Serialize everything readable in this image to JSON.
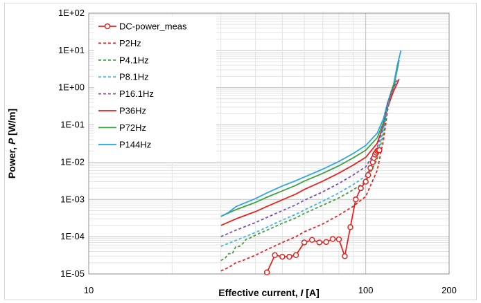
{
  "chart_data": {
    "type": "line",
    "xlabel_parts": [
      "Effective  current, ",
      "I",
      "  [A]"
    ],
    "ylabel_parts": [
      "Power, ",
      "P",
      "  [W/m]"
    ],
    "x_scale": "log",
    "y_scale": "log",
    "xlim": [
      10,
      200
    ],
    "ylim": [
      1e-05,
      100
    ],
    "x_ticks": [
      {
        "v": 10,
        "label": "10"
      },
      {
        "v": 100,
        "label": "100"
      },
      {
        "v": 200,
        "label": "200"
      }
    ],
    "y_ticks": [
      {
        "v": 100,
        "label": "1E+02"
      },
      {
        "v": 10,
        "label": "1E+01"
      },
      {
        "v": 1,
        "label": "1E+00"
      },
      {
        "v": 0.1,
        "label": "1E-01"
      },
      {
        "v": 0.01,
        "label": "1E-02"
      },
      {
        "v": 0.001,
        "label": "1E-03"
      },
      {
        "v": 0.0001,
        "label": "1E-04"
      },
      {
        "v": 1e-05,
        "label": "1E-05"
      }
    ],
    "grid": true,
    "legend_position": "top-left",
    "series": [
      {
        "name": "DC-power_meas",
        "color": "#e8231f",
        "dash": "solid",
        "marker": "circle",
        "x": [
          44,
          47,
          50,
          53,
          56,
          60,
          64,
          68,
          72,
          76,
          80,
          84,
          88,
          92,
          96,
          100,
          102,
          104,
          106,
          107,
          108,
          109,
          110,
          111,
          112
        ],
        "y": [
          1.1e-05,
          3.2e-05,
          2.9e-05,
          2.9e-05,
          3.2e-05,
          7e-05,
          8.2e-05,
          7e-05,
          7.2e-05,
          8.7e-05,
          8.5e-05,
          3e-05,
          0.00018,
          0.001,
          0.002,
          0.003,
          0.0045,
          0.007,
          0.01,
          0.013,
          0.016,
          0.018,
          0.02,
          0.021,
          0.021
        ]
      },
      {
        "name": "P2Hz",
        "color": "#e8231f",
        "dash": "dashed",
        "x": [
          30,
          32,
          34,
          36,
          40,
          44,
          50,
          56,
          60,
          70,
          80,
          90,
          100,
          110,
          116,
          120,
          124,
          128
        ],
        "y": [
          1.2e-05,
          1.5e-05,
          2e-05,
          2.3e-05,
          3.2e-05,
          4.5e-05,
          7e-05,
          0.0001,
          0.000135,
          0.00022,
          0.00038,
          0.00065,
          0.0012,
          0.006,
          0.04,
          0.25,
          0.8,
          1.5
        ]
      },
      {
        "name": "P4.1Hz",
        "color": "#3fa13f",
        "dash": "dashed",
        "x": [
          30,
          31,
          32,
          33,
          34,
          35,
          36,
          37,
          38,
          40,
          44,
          50,
          56,
          60,
          70,
          80,
          90,
          100,
          110,
          116,
          120,
          124,
          128
        ],
        "y": [
          2.3e-05,
          2.6e-05,
          3.5e-05,
          3.5e-05,
          5.5e-05,
          5.5e-05,
          6.5e-05,
          8.5e-05,
          9e-05,
          0.00011,
          0.00015,
          0.00023,
          0.00032,
          0.00042,
          0.0007,
          0.0011,
          0.0018,
          0.003,
          0.012,
          0.06,
          0.3,
          0.9,
          1.5
        ]
      },
      {
        "name": "P8.1Hz",
        "color": "#3fb6e0",
        "dash": "dashed",
        "x": [
          30,
          34,
          40,
          44,
          50,
          56,
          60,
          70,
          80,
          90,
          100,
          110,
          116,
          120,
          126,
          130
        ],
        "y": [
          5.5e-05,
          8e-05,
          0.00013,
          0.00018,
          0.00028,
          0.0004,
          0.00052,
          0.0009,
          0.0015,
          0.0025,
          0.0042,
          0.015,
          0.08,
          0.35,
          1.0,
          1.5
        ]
      },
      {
        "name": "P16.1Hz",
        "color": "#7a4fb0",
        "dash": "dashed",
        "x": [
          30,
          34,
          40,
          44,
          50,
          56,
          60,
          70,
          80,
          90,
          100,
          110,
          116,
          120,
          126,
          130
        ],
        "y": [
          0.0001,
          0.00015,
          0.00024,
          0.00033,
          0.0005,
          0.00072,
          0.00095,
          0.0016,
          0.0027,
          0.0045,
          0.0075,
          0.024,
          0.1,
          0.38,
          1.0,
          1.6
        ]
      },
      {
        "name": "P36Hz",
        "color": "#e8231f",
        "dash": "solid",
        "x": [
          30,
          34,
          40,
          44,
          50,
          56,
          60,
          70,
          80,
          90,
          100,
          110,
          116,
          120,
          126,
          132
        ],
        "y": [
          0.0002,
          0.0003,
          0.00047,
          0.00065,
          0.00098,
          0.0014,
          0.00185,
          0.0031,
          0.0051,
          0.0083,
          0.0135,
          0.032,
          0.1,
          0.3,
          0.8,
          1.7
        ]
      },
      {
        "name": "P72Hz",
        "color": "#3fa13f",
        "dash": "solid",
        "x": [
          30,
          34,
          40,
          44,
          50,
          56,
          60,
          70,
          80,
          90,
          100,
          110,
          116,
          120,
          126,
          132
        ],
        "y": [
          0.00035,
          0.00053,
          0.00083,
          0.00115,
          0.0017,
          0.0024,
          0.0031,
          0.005,
          0.008,
          0.013,
          0.021,
          0.045,
          0.12,
          0.35,
          1.0,
          5.5
        ]
      },
      {
        "name": "P144Hz",
        "color": "#2da7e0",
        "dash": "solid",
        "x": [
          30,
          32,
          34,
          40,
          44,
          50,
          56,
          60,
          70,
          80,
          90,
          100,
          110,
          116,
          120,
          126,
          130,
          134
        ],
        "y": [
          0.00035,
          0.00045,
          0.00064,
          0.00105,
          0.0015,
          0.0023,
          0.0032,
          0.004,
          0.0065,
          0.0105,
          0.017,
          0.028,
          0.06,
          0.15,
          0.4,
          1.2,
          4.0,
          10
        ]
      }
    ]
  }
}
